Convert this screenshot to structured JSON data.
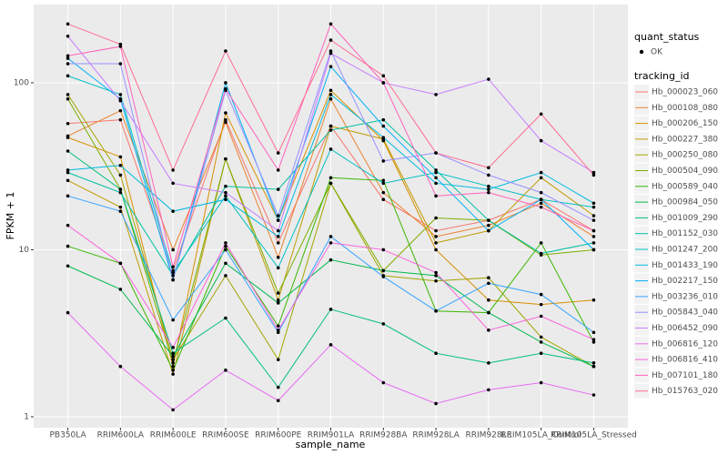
{
  "chart_data": {
    "type": "line",
    "x_label": "sample_name",
    "y_label": "FPKM + 1",
    "log_y": true,
    "grid": true,
    "points": true,
    "legend_position": "right",
    "shape_legend": {
      "title": "quant_status",
      "labels": [
        "OK"
      ]
    },
    "color_legend_title": "tracking_id",
    "categories": [
      "PB350LA",
      "RRIM600LA",
      "RRIM600LE",
      "RRIM600SE",
      "RRIM600PE",
      "RRIM901LA",
      "RRIM928BA",
      "RRIM928LA",
      "RRIM928LE",
      "RRIM105LA_Control",
      "RRIM105LA_Stressed"
    ],
    "ylim": [
      0.86,
      294
    ],
    "yticks": [
      1,
      10,
      100
    ],
    "series": [
      {
        "name": "Hb_000023_060",
        "color": "#F8766D",
        "values": [
          57,
          60,
          7.5,
          60,
          11,
          55,
          20,
          13,
          15,
          20,
          13
        ]
      },
      {
        "name": "Hb_000108_080",
        "color": "#EA8331",
        "values": [
          48,
          68,
          10,
          58,
          9,
          80,
          22,
          12,
          14,
          19,
          12
        ]
      },
      {
        "name": "Hb_000206_150",
        "color": "#D89000",
        "values": [
          47,
          36,
          2.0,
          66,
          15,
          90,
          45,
          10,
          5,
          4.7,
          5
        ]
      },
      {
        "name": "Hb_000227_380",
        "color": "#C09B00",
        "values": [
          26,
          18,
          1.8,
          35,
          5,
          55,
          46,
          11,
          13,
          27,
          16
        ]
      },
      {
        "name": "Hb_000250_080",
        "color": "#A3A500",
        "values": [
          85,
          28,
          2.2,
          7,
          2.2,
          25,
          7,
          6.5,
          6.8,
          3,
          2.0
        ]
      },
      {
        "name": "Hb_000504_090",
        "color": "#7CAE00",
        "values": [
          80,
          23,
          2.1,
          35,
          5.5,
          25,
          7.5,
          15.5,
          15,
          9.3,
          10
        ]
      },
      {
        "name": "Hb_000589_040",
        "color": "#39B600",
        "values": [
          10.5,
          8.3,
          1.9,
          10.5,
          3.5,
          27,
          26,
          4.3,
          4.2,
          11,
          2.8
        ]
      },
      {
        "name": "Hb_000984_050",
        "color": "#00BB4E",
        "values": [
          8,
          5.8,
          2.3,
          8.3,
          4.8,
          8.7,
          7.5,
          7,
          4.2,
          2.8,
          2.0
        ]
      },
      {
        "name": "Hb_001009_290",
        "color": "#00BF7D",
        "values": [
          39,
          23,
          2.4,
          3.9,
          1.5,
          4.4,
          3.6,
          2.4,
          2.1,
          2.4,
          2.1
        ]
      },
      {
        "name": "Hb_001152_030",
        "color": "#00C1A3",
        "values": [
          29,
          22,
          7,
          24,
          23,
          52,
          60,
          30,
          15,
          9.5,
          11
        ]
      },
      {
        "name": "Hb_001247_200",
        "color": "#00BFC4",
        "values": [
          110,
          85,
          7.3,
          21,
          7.8,
          40,
          25,
          29,
          24,
          20,
          18
        ]
      },
      {
        "name": "Hb_001433_190",
        "color": "#00BAE0",
        "values": [
          30,
          32,
          17,
          20,
          12,
          85,
          47,
          25,
          23,
          29,
          19
        ]
      },
      {
        "name": "Hb_002217_150",
        "color": "#00B0F6",
        "values": [
          140,
          80,
          6.6,
          100,
          15,
          125,
          55,
          27,
          13,
          20,
          10
        ]
      },
      {
        "name": "Hb_003236_010",
        "color": "#35A2FF",
        "values": [
          21,
          17,
          3.8,
          10,
          3.2,
          12,
          6.9,
          4.3,
          6.3,
          5.4,
          3.2
        ]
      },
      {
        "name": "Hb_005843_040",
        "color": "#9590FF",
        "values": [
          130,
          130,
          6.6,
          90,
          16,
          155,
          34,
          38,
          28,
          22,
          15
        ]
      },
      {
        "name": "Hb_006452_090",
        "color": "#C77CFF",
        "values": [
          190,
          78,
          25,
          22,
          13,
          150,
          100,
          85,
          105,
          45,
          29
        ]
      },
      {
        "name": "Hb_006816_120",
        "color": "#E76BF3",
        "values": [
          4.2,
          2.0,
          1.1,
          1.9,
          1.25,
          2.7,
          1.6,
          1.2,
          1.45,
          1.6,
          1.35
        ]
      },
      {
        "name": "Hb_006816_410",
        "color": "#FA62DB",
        "values": [
          14,
          8.3,
          2.6,
          11,
          3.3,
          11,
          10,
          7.3,
          3.3,
          4.0,
          2.9
        ]
      },
      {
        "name": "Hb_007101_180",
        "color": "#FF62BC",
        "values": [
          145,
          165,
          7.9,
          92,
          30,
          225,
          100,
          21,
          22,
          18,
          13
        ]
      },
      {
        "name": "Hb_015763_020",
        "color": "#FF6C91",
        "values": [
          225,
          170,
          30,
          155,
          38,
          180,
          110,
          38,
          31,
          65,
          28
        ]
      }
    ]
  }
}
